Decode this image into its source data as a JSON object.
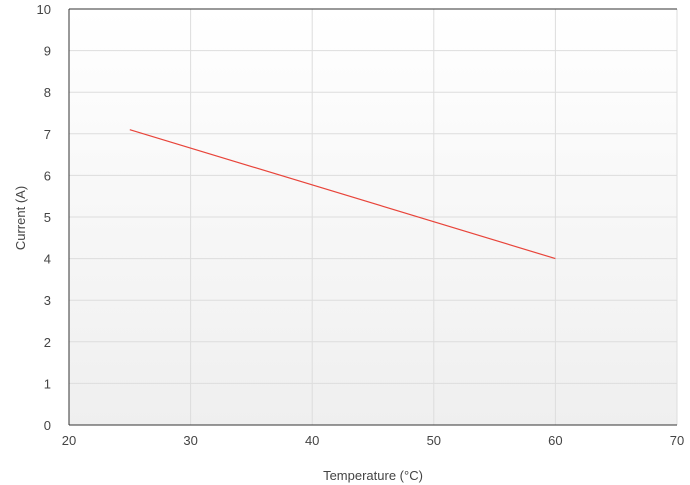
{
  "chart_data": {
    "type": "line",
    "title": "",
    "xlabel": "Temperature (°C)",
    "ylabel": "Current (A)",
    "xlim": [
      20,
      70
    ],
    "ylim": [
      0,
      10
    ],
    "x_ticks": [
      20,
      30,
      40,
      50,
      60,
      70
    ],
    "y_ticks": [
      0,
      1,
      2,
      3,
      4,
      5,
      6,
      7,
      8,
      9,
      10
    ],
    "grid": true,
    "series": [
      {
        "color": "#e8443a",
        "x": [
          25,
          60
        ],
        "y": [
          7.1,
          4.0
        ]
      }
    ],
    "colors": {
      "background_top": "#ffffff",
      "background_bottom": "#efefef",
      "grid": "#dddddd",
      "axis": "#333333"
    }
  }
}
